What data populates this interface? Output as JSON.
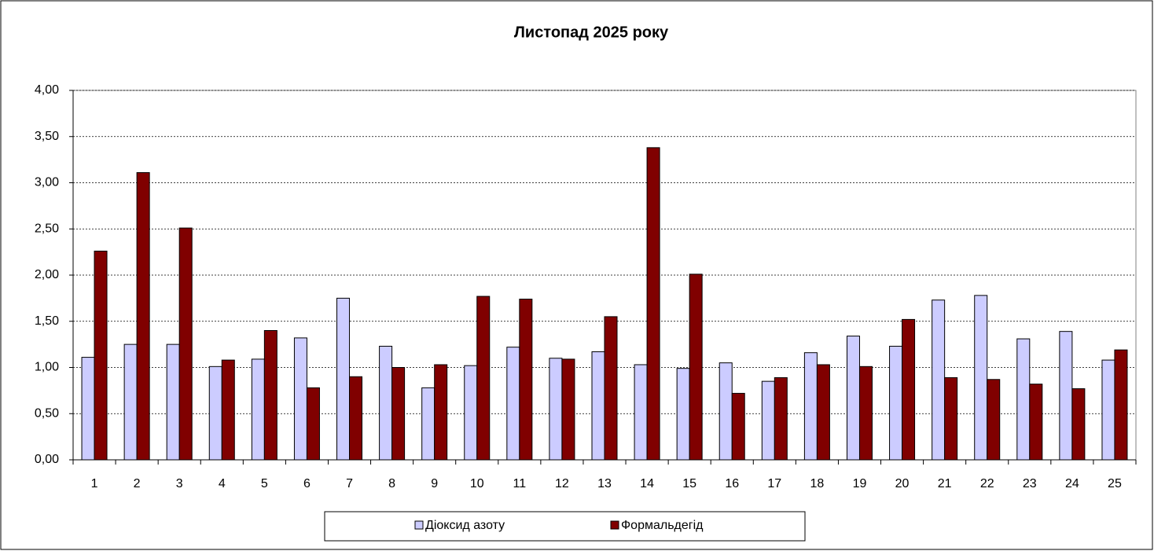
{
  "chart_data": {
    "type": "bar",
    "title": "Листопад 2025 року",
    "categories": [
      "1",
      "2",
      "3",
      "4",
      "5",
      "6",
      "7",
      "8",
      "9",
      "10",
      "11",
      "12",
      "13",
      "14",
      "15",
      "16",
      "17",
      "18",
      "19",
      "20",
      "21",
      "22",
      "23",
      "24",
      "25"
    ],
    "series": [
      {
        "name": "Діоксид азоту",
        "color": "#ccccff",
        "values": [
          1.11,
          1.25,
          1.25,
          1.01,
          1.09,
          1.32,
          1.75,
          1.23,
          0.78,
          1.02,
          1.22,
          1.1,
          1.17,
          1.03,
          0.99,
          1.05,
          0.85,
          1.16,
          1.34,
          1.23,
          1.73,
          1.78,
          1.31,
          1.39,
          1.08
        ]
      },
      {
        "name": "Формальдегід",
        "color": "#800000",
        "values": [
          2.26,
          3.11,
          2.51,
          1.08,
          1.4,
          0.78,
          0.9,
          1.0,
          1.03,
          1.77,
          1.74,
          1.09,
          1.55,
          3.38,
          2.01,
          0.72,
          0.89,
          1.03,
          1.01,
          1.52,
          0.89,
          0.87,
          0.82,
          0.77,
          1.19
        ]
      }
    ],
    "ylim": [
      0,
      4
    ],
    "yticks": [
      {
        "value": 0,
        "label": "0,00"
      },
      {
        "value": 0.5,
        "label": "0,50"
      },
      {
        "value": 1,
        "label": "1,00"
      },
      {
        "value": 1.5,
        "label": "1,50"
      },
      {
        "value": 2,
        "label": "2,00"
      },
      {
        "value": 2.5,
        "label": "2,50"
      },
      {
        "value": 3,
        "label": "3,00"
      },
      {
        "value": 3.5,
        "label": "3,50"
      },
      {
        "value": 4,
        "label": "4,00"
      }
    ],
    "grid": true,
    "legend": "bottom"
  }
}
